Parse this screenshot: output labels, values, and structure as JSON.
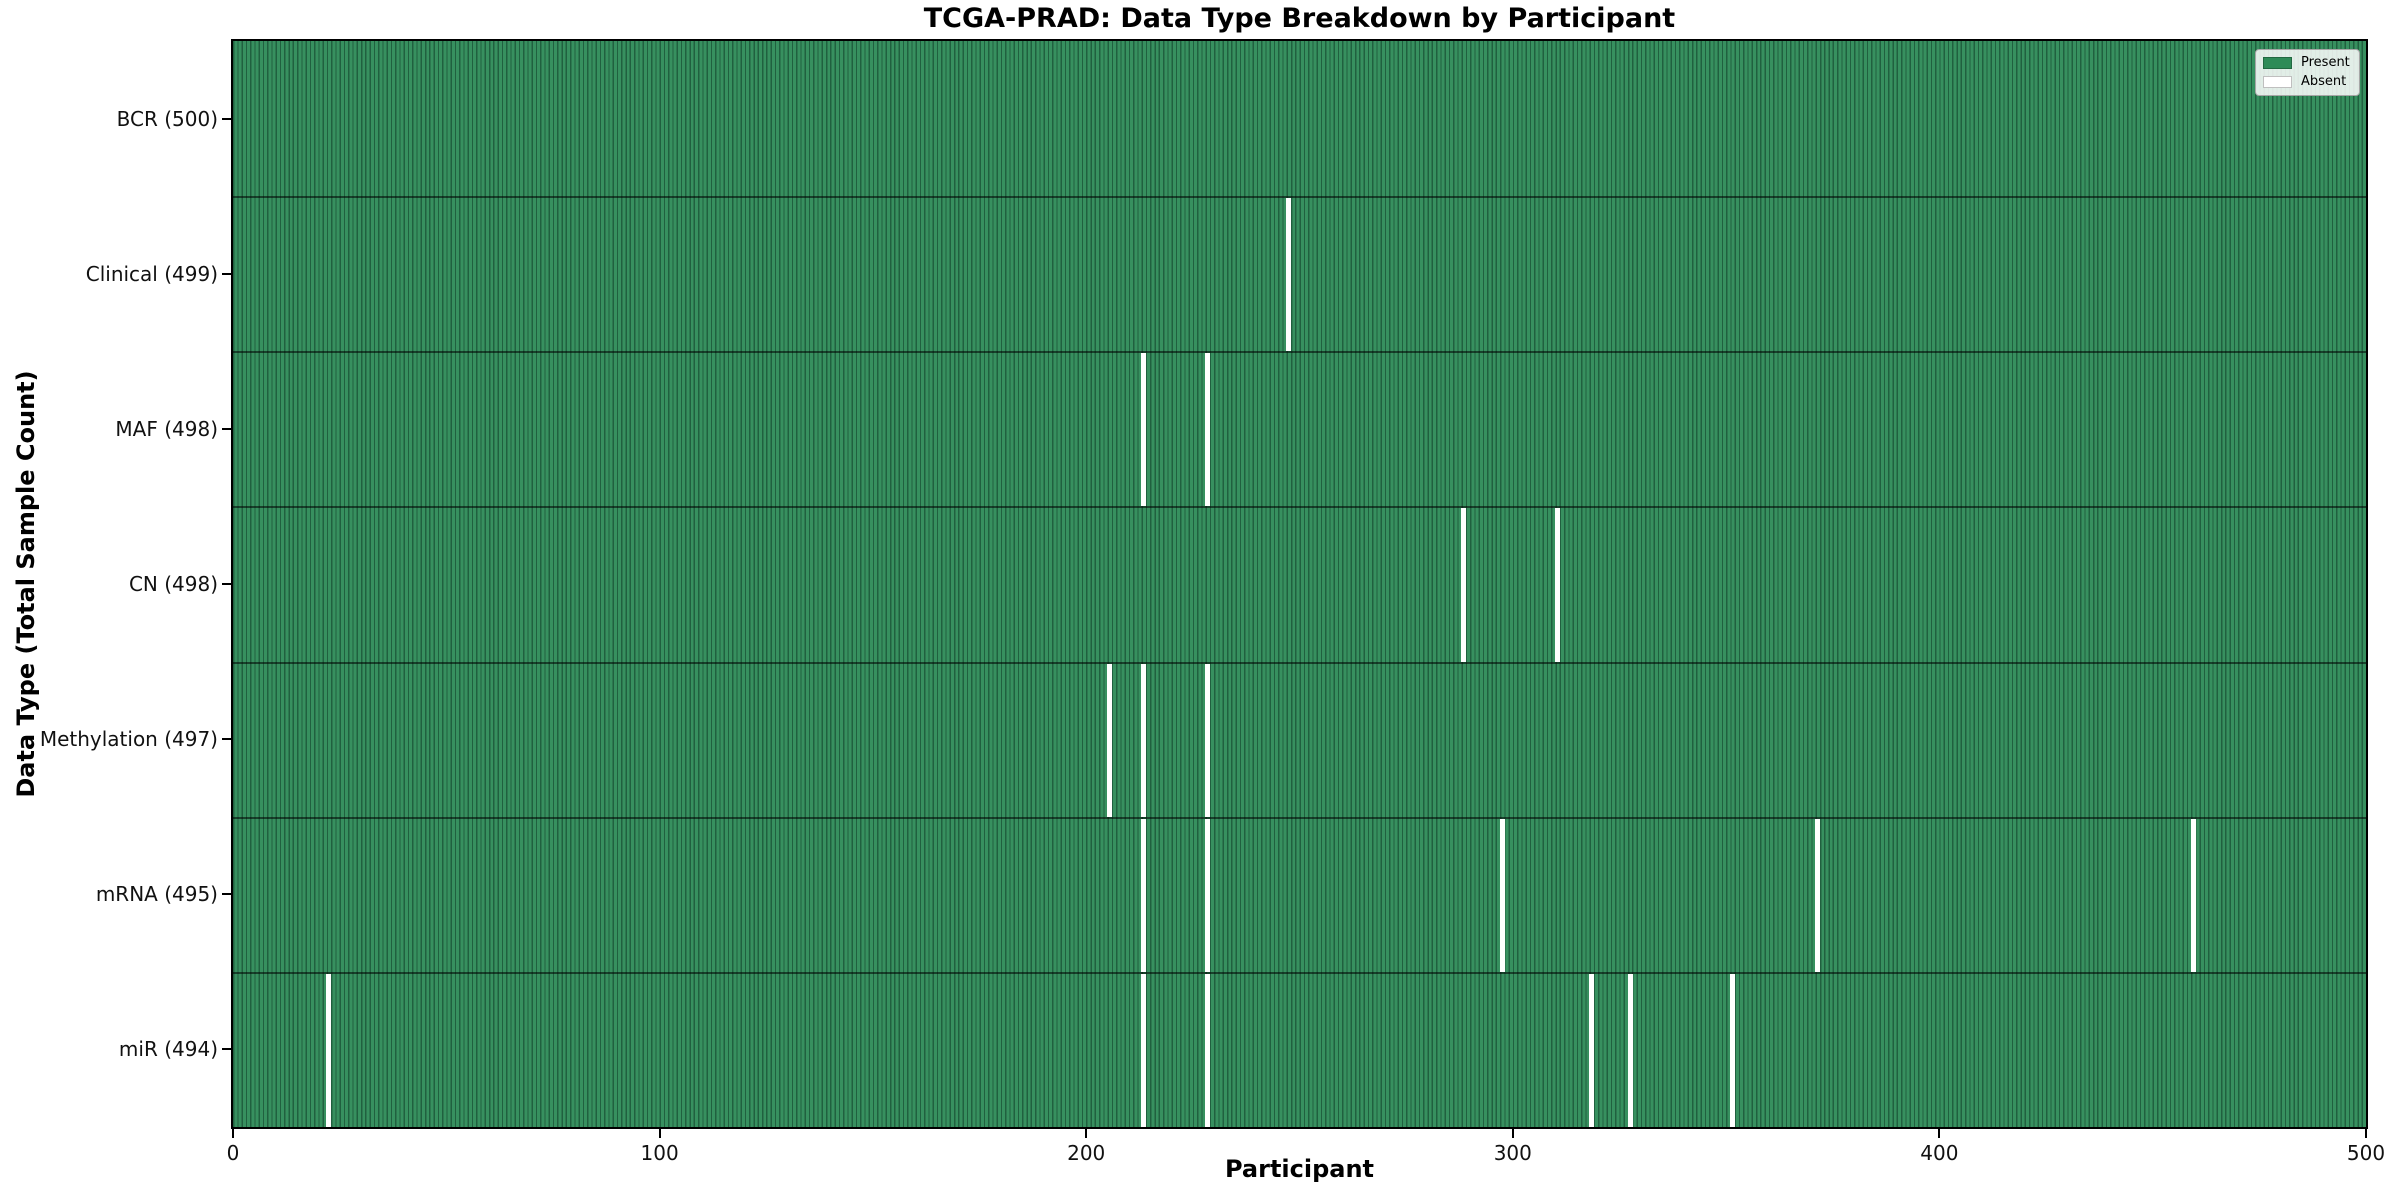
{
  "chart_data": {
    "type": "heatmap",
    "title": "TCGA-PRAD: Data Type Breakdown by Participant",
    "xlabel": "Participant",
    "ylabel": "Data Type (Total Sample Count)",
    "x_range": [
      0,
      500
    ],
    "x_ticks": [
      0,
      100,
      200,
      300,
      400,
      500
    ],
    "n_participants": 500,
    "grid": false,
    "legend_position": "upper right",
    "legend": [
      {
        "label": "Present",
        "color": "#2e8b57"
      },
      {
        "label": "Absent",
        "color": "#ffffff"
      }
    ],
    "colors": {
      "present_fill": "#37905f",
      "cell_edge": "#20603f",
      "absent": "#ffffff",
      "row_divider": "rgba(0,0,0,0.55)",
      "spine": "#000000"
    },
    "rows": [
      {
        "label": "BCR (500)",
        "total": 500,
        "absent_participants": []
      },
      {
        "label": "Clinical (499)",
        "total": 499,
        "absent_participants": [
          247
        ]
      },
      {
        "label": "MAF (498)",
        "total": 498,
        "absent_participants": [
          213,
          228
        ]
      },
      {
        "label": "CN (498)",
        "total": 498,
        "absent_participants": [
          288,
          310
        ]
      },
      {
        "label": "Methylation (497)",
        "total": 497,
        "absent_participants": [
          205,
          213,
          228
        ]
      },
      {
        "label": "mRNA (495)",
        "total": 495,
        "absent_participants": [
          213,
          228,
          297,
          371,
          459
        ]
      },
      {
        "label": "miR (494)",
        "total": 494,
        "absent_participants": [
          22,
          213,
          228,
          318,
          327,
          351
        ]
      }
    ]
  }
}
